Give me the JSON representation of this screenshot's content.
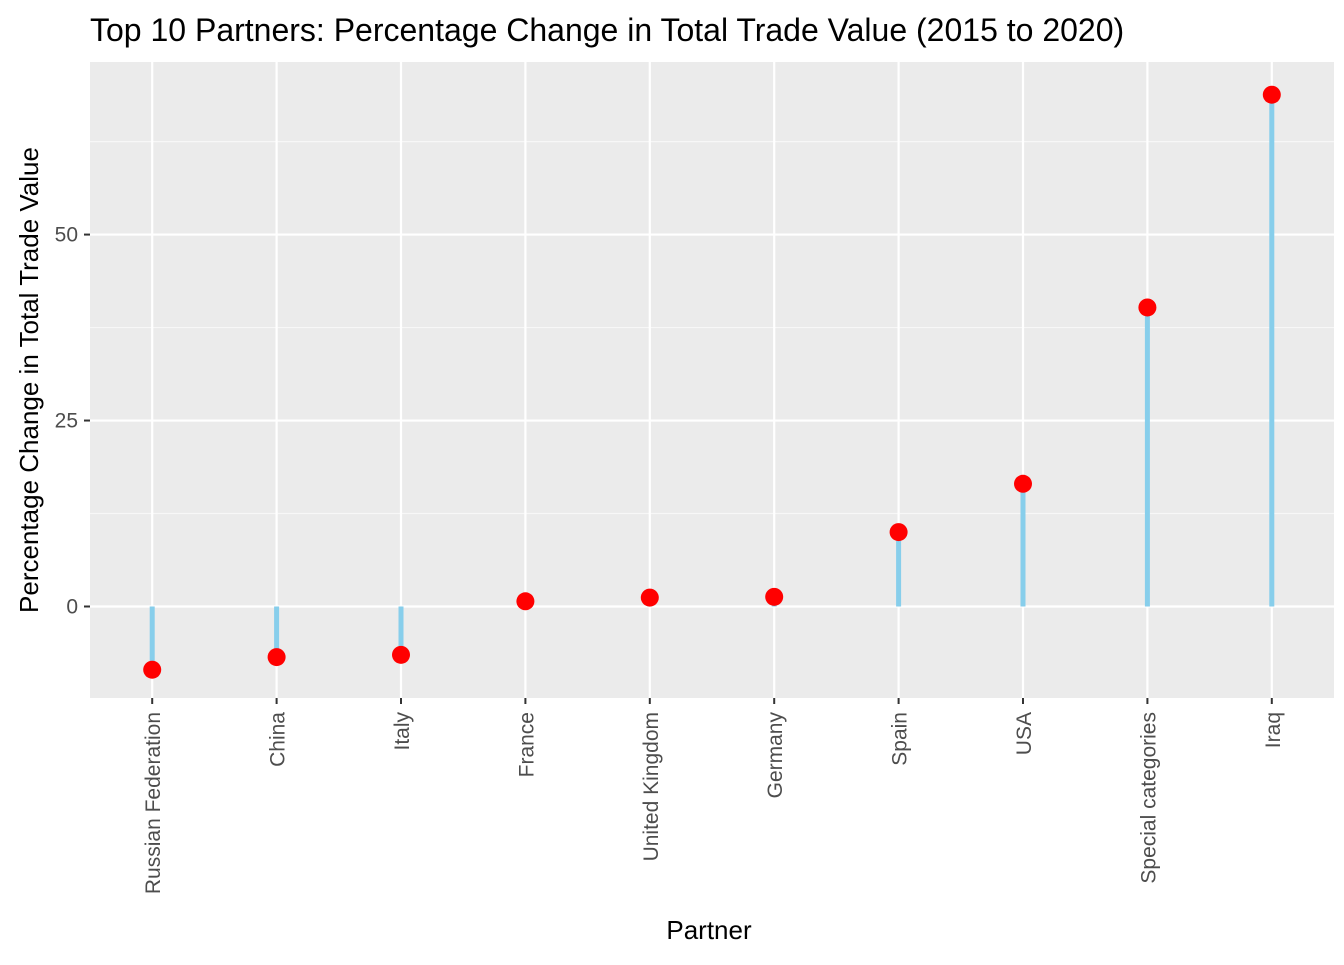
{
  "chart_data": {
    "type": "lollipop",
    "title": "Top 10 Partners: Percentage Change in Total Trade Value (2015 to 2020)",
    "xlabel": "Partner",
    "ylabel": "Percentage Change in Total Trade Value",
    "categories": [
      "Russian Federation",
      "China",
      "Italy",
      "France",
      "United Kingdom",
      "Germany",
      "Spain",
      "USA",
      "Special categories",
      "Iraq"
    ],
    "values": [
      -8.5,
      -6.8,
      -6.5,
      0.7,
      1.2,
      1.3,
      10.0,
      16.5,
      40.2,
      68.8
    ],
    "yticks": [
      0,
      25,
      50
    ],
    "ylim": [
      -12.3,
      73.2
    ],
    "grid": true,
    "colors": {
      "panel_background": "#ebebeb",
      "grid_major": "#ffffff",
      "grid_minor": "#f7f7f7",
      "segment": "#87ceeb",
      "point": "#ff0000",
      "tick_label": "#4d4d4d",
      "axis_tick": "#333333"
    }
  }
}
